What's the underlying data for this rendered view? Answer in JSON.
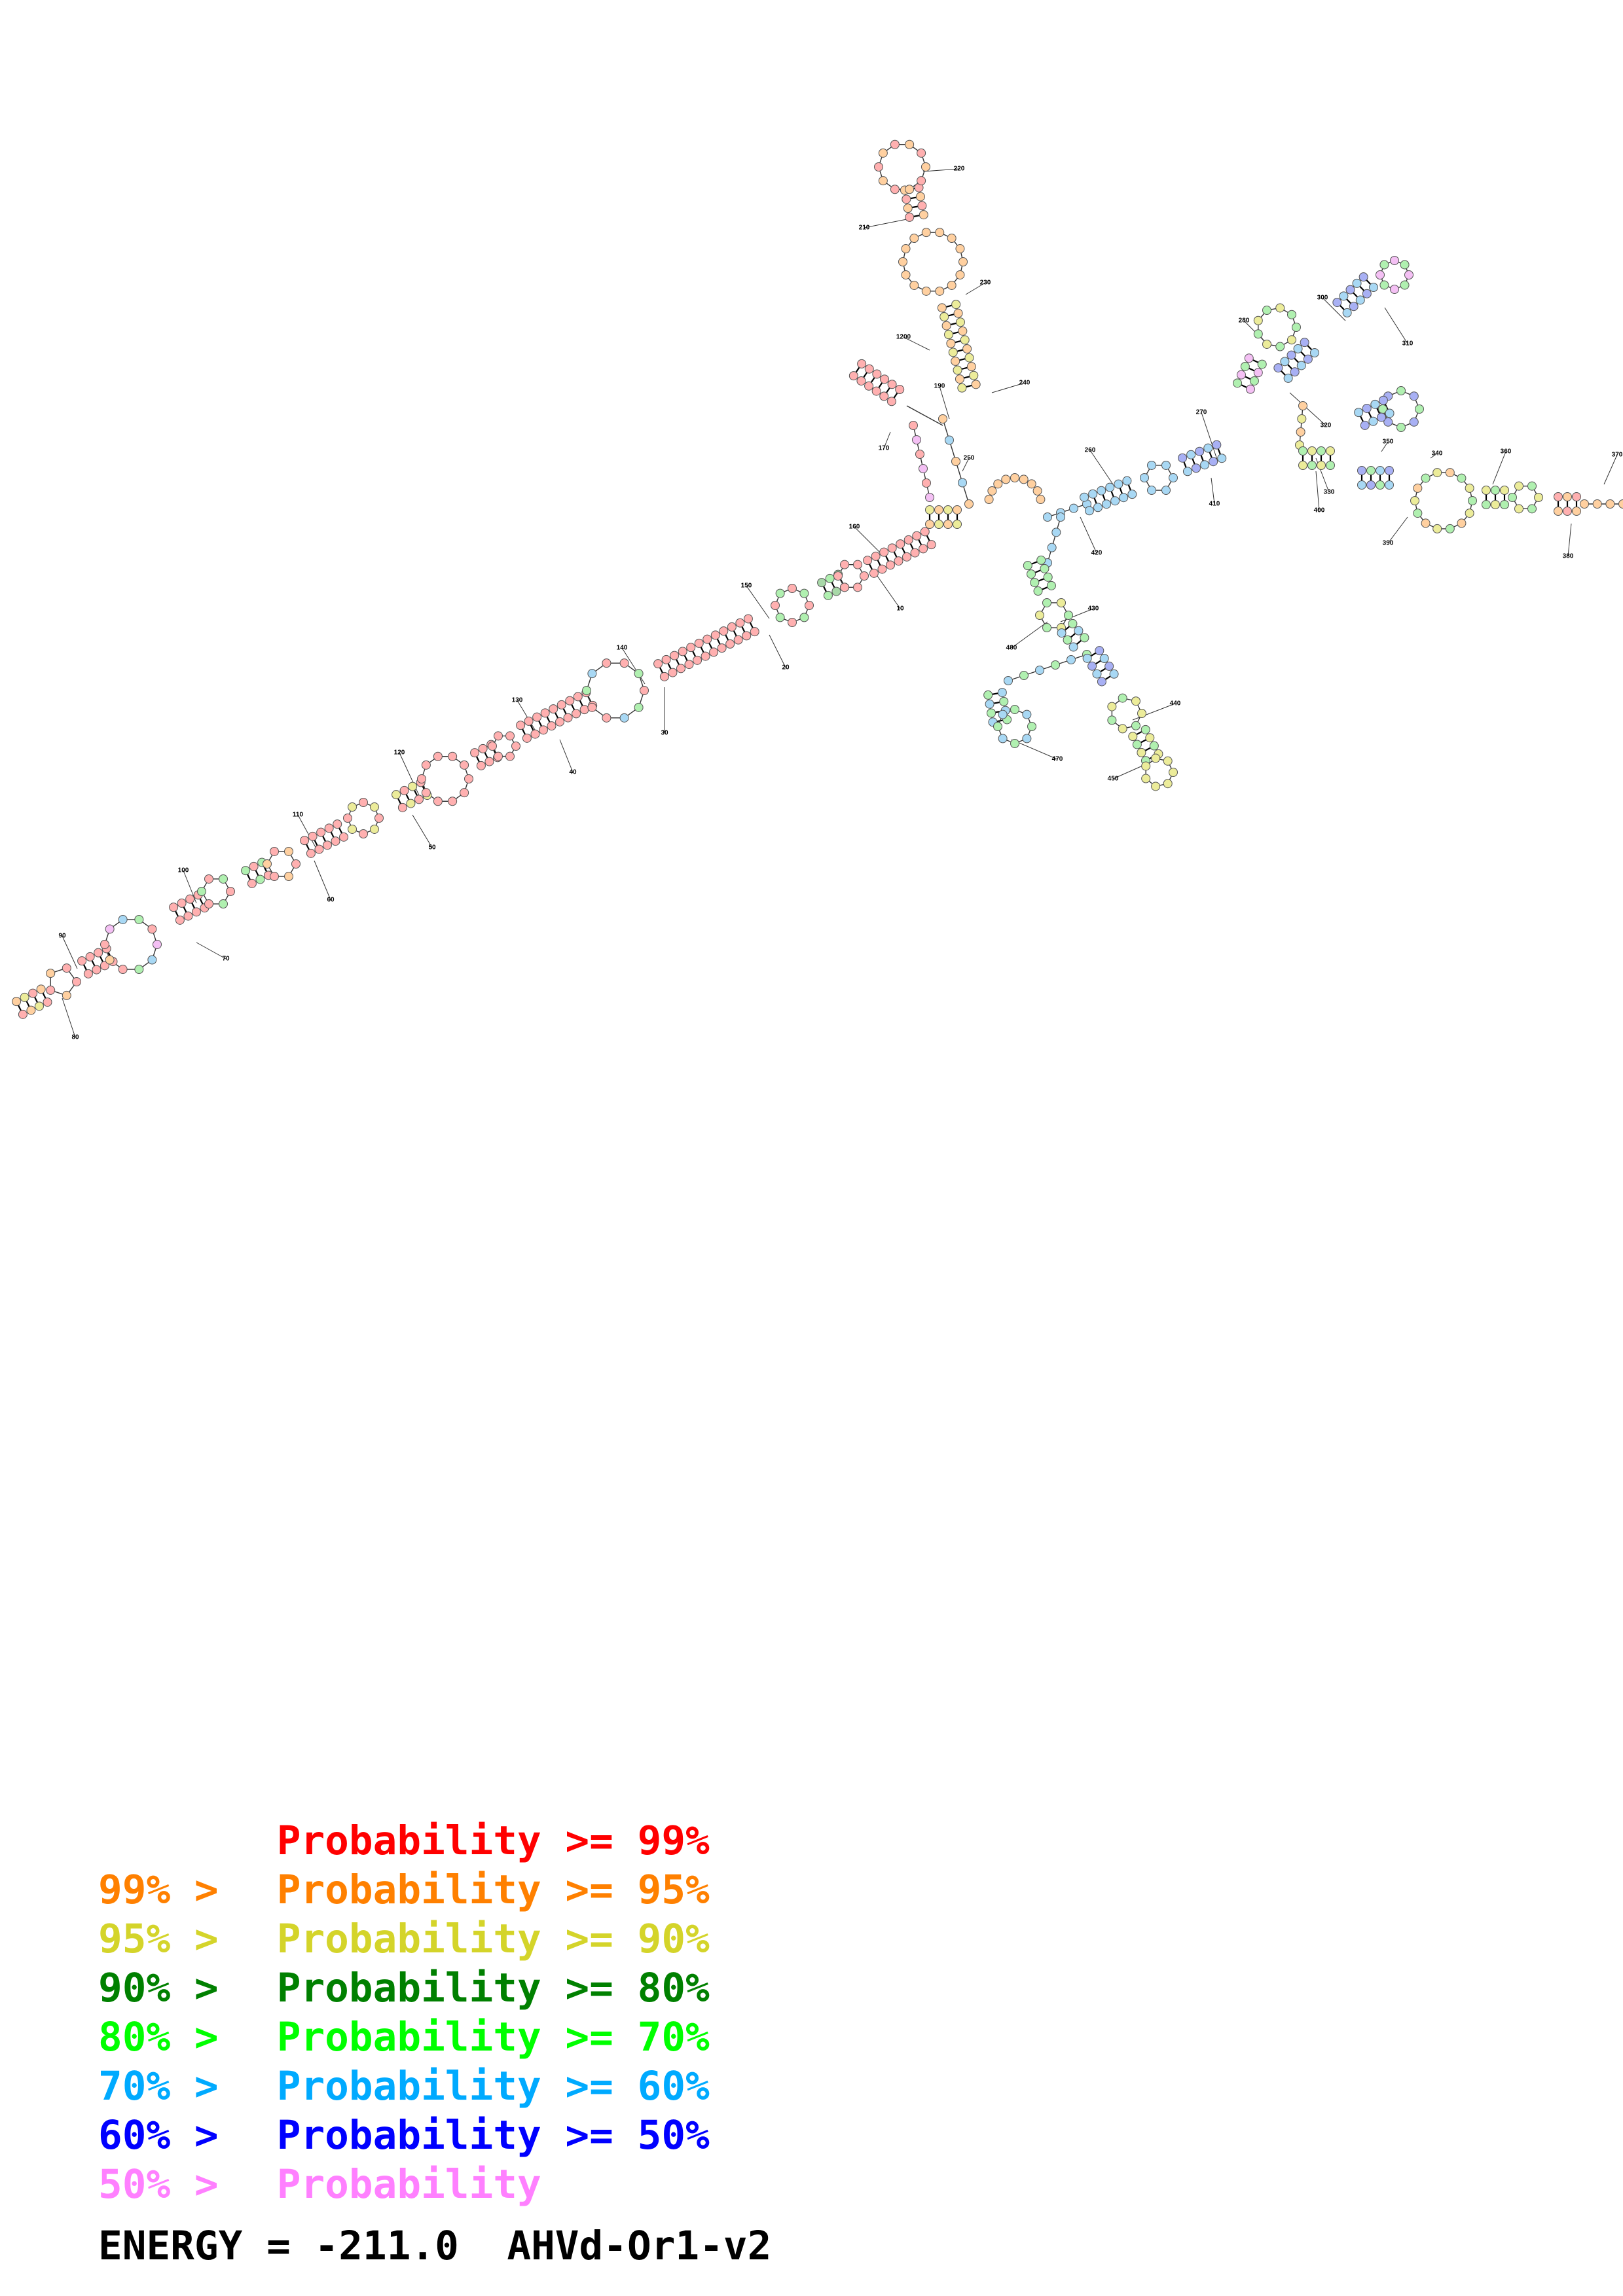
{
  "legend": [
    {
      "lhs": "",
      "rhs": "Probability >= 99%",
      "color": "#ff0000"
    },
    {
      "lhs": "99% >",
      "rhs": "Probability >= 95%",
      "color": "#ff8000"
    },
    {
      "lhs": "95% >",
      "rhs": "Probability >= 90%",
      "color": "#d4d42a"
    },
    {
      "lhs": "90% >",
      "rhs": "Probability >= 80%",
      "color": "#008000"
    },
    {
      "lhs": "80% >",
      "rhs": "Probability >= 70%",
      "color": "#00ff00"
    },
    {
      "lhs": "70% >",
      "rhs": "Probability >= 60%",
      "color": "#00aaff"
    },
    {
      "lhs": "60% >",
      "rhs": "Probability >= 50%",
      "color": "#0000ff"
    },
    {
      "lhs": "50% >",
      "rhs": "Probability",
      "color": "#ff80ff"
    }
  ],
  "energy": {
    "label": "ENERGY = ",
    "value": "-211.0",
    "name": "AHVd-Or1-v2"
  },
  "position_labels": [
    "10",
    "20",
    "30",
    "40",
    "50",
    "60",
    "70",
    "80",
    "90",
    "100",
    "110",
    "120",
    "130",
    "140",
    "150",
    "160",
    "170",
    "190",
    "1200",
    "210",
    "220",
    "230",
    "240",
    "250",
    "260",
    "270",
    "280",
    "300",
    "310",
    "320",
    "330",
    "350",
    "340",
    "360",
    "370",
    "380",
    "390",
    "400",
    "410",
    "420",
    "430",
    "440",
    "450",
    "470",
    "480"
  ]
}
